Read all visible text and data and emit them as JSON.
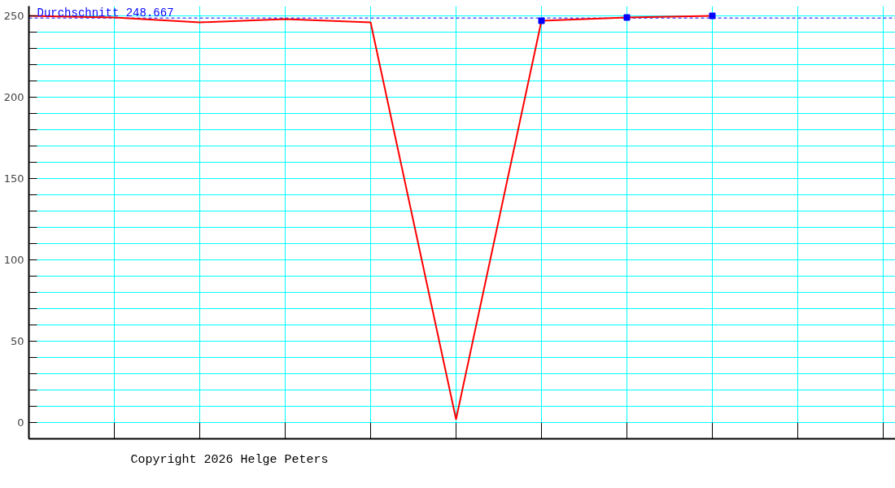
{
  "chart_data": {
    "type": "line",
    "categories": [
      null,
      null,
      null,
      null,
      null,
      null,
      null,
      null,
      null,
      null,
      null
    ],
    "series": [
      {
        "color": "#ff0000",
        "values": [
          250,
          249,
          246,
          248,
          246,
          2,
          247,
          249,
          250,
          null,
          null
        ]
      },
      {
        "type": "scatter",
        "color": "#0000ff",
        "marker": "square",
        "values": [
          null,
          null,
          null,
          null,
          null,
          null,
          247,
          249,
          250,
          null,
          null
        ]
      }
    ],
    "ylim": [
      -10,
      256
    ],
    "yticks": [
      0,
      {
        "value": 10,
        "label": null
      },
      {
        "value": 20,
        "label": null
      },
      {
        "value": 30,
        "label": null
      },
      {
        "value": 40,
        "label": null
      },
      50,
      {
        "value": 60,
        "label": null
      },
      {
        "value": 70,
        "label": null
      },
      {
        "value": 80,
        "label": null
      },
      {
        "value": 90,
        "label": null
      },
      100,
      {
        "value": 110,
        "label": null
      },
      {
        "value": 120,
        "label": null
      },
      {
        "value": 130,
        "label": null
      },
      {
        "value": 140,
        "label": null
      },
      150,
      {
        "value": 160,
        "label": null
      },
      {
        "value": 170,
        "label": null
      },
      {
        "value": 180,
        "label": null
      },
      {
        "value": 190,
        "label": null
      },
      200,
      {
        "value": 210,
        "label": null
      },
      {
        "value": 220,
        "label": null
      },
      {
        "value": 230,
        "label": null
      },
      {
        "value": 240,
        "label": null
      },
      250
    ],
    "grid": true,
    "tick_labels": "y",
    "ref_lines": [
      {
        "axis": "y",
        "value": 248.667,
        "label": "Durchschnitt 248.667",
        "color": "#0000ff",
        "line_style": "dashed"
      }
    ],
    "annotations": [
      "Copyright 2026 Helge Peters"
    ]
  }
}
